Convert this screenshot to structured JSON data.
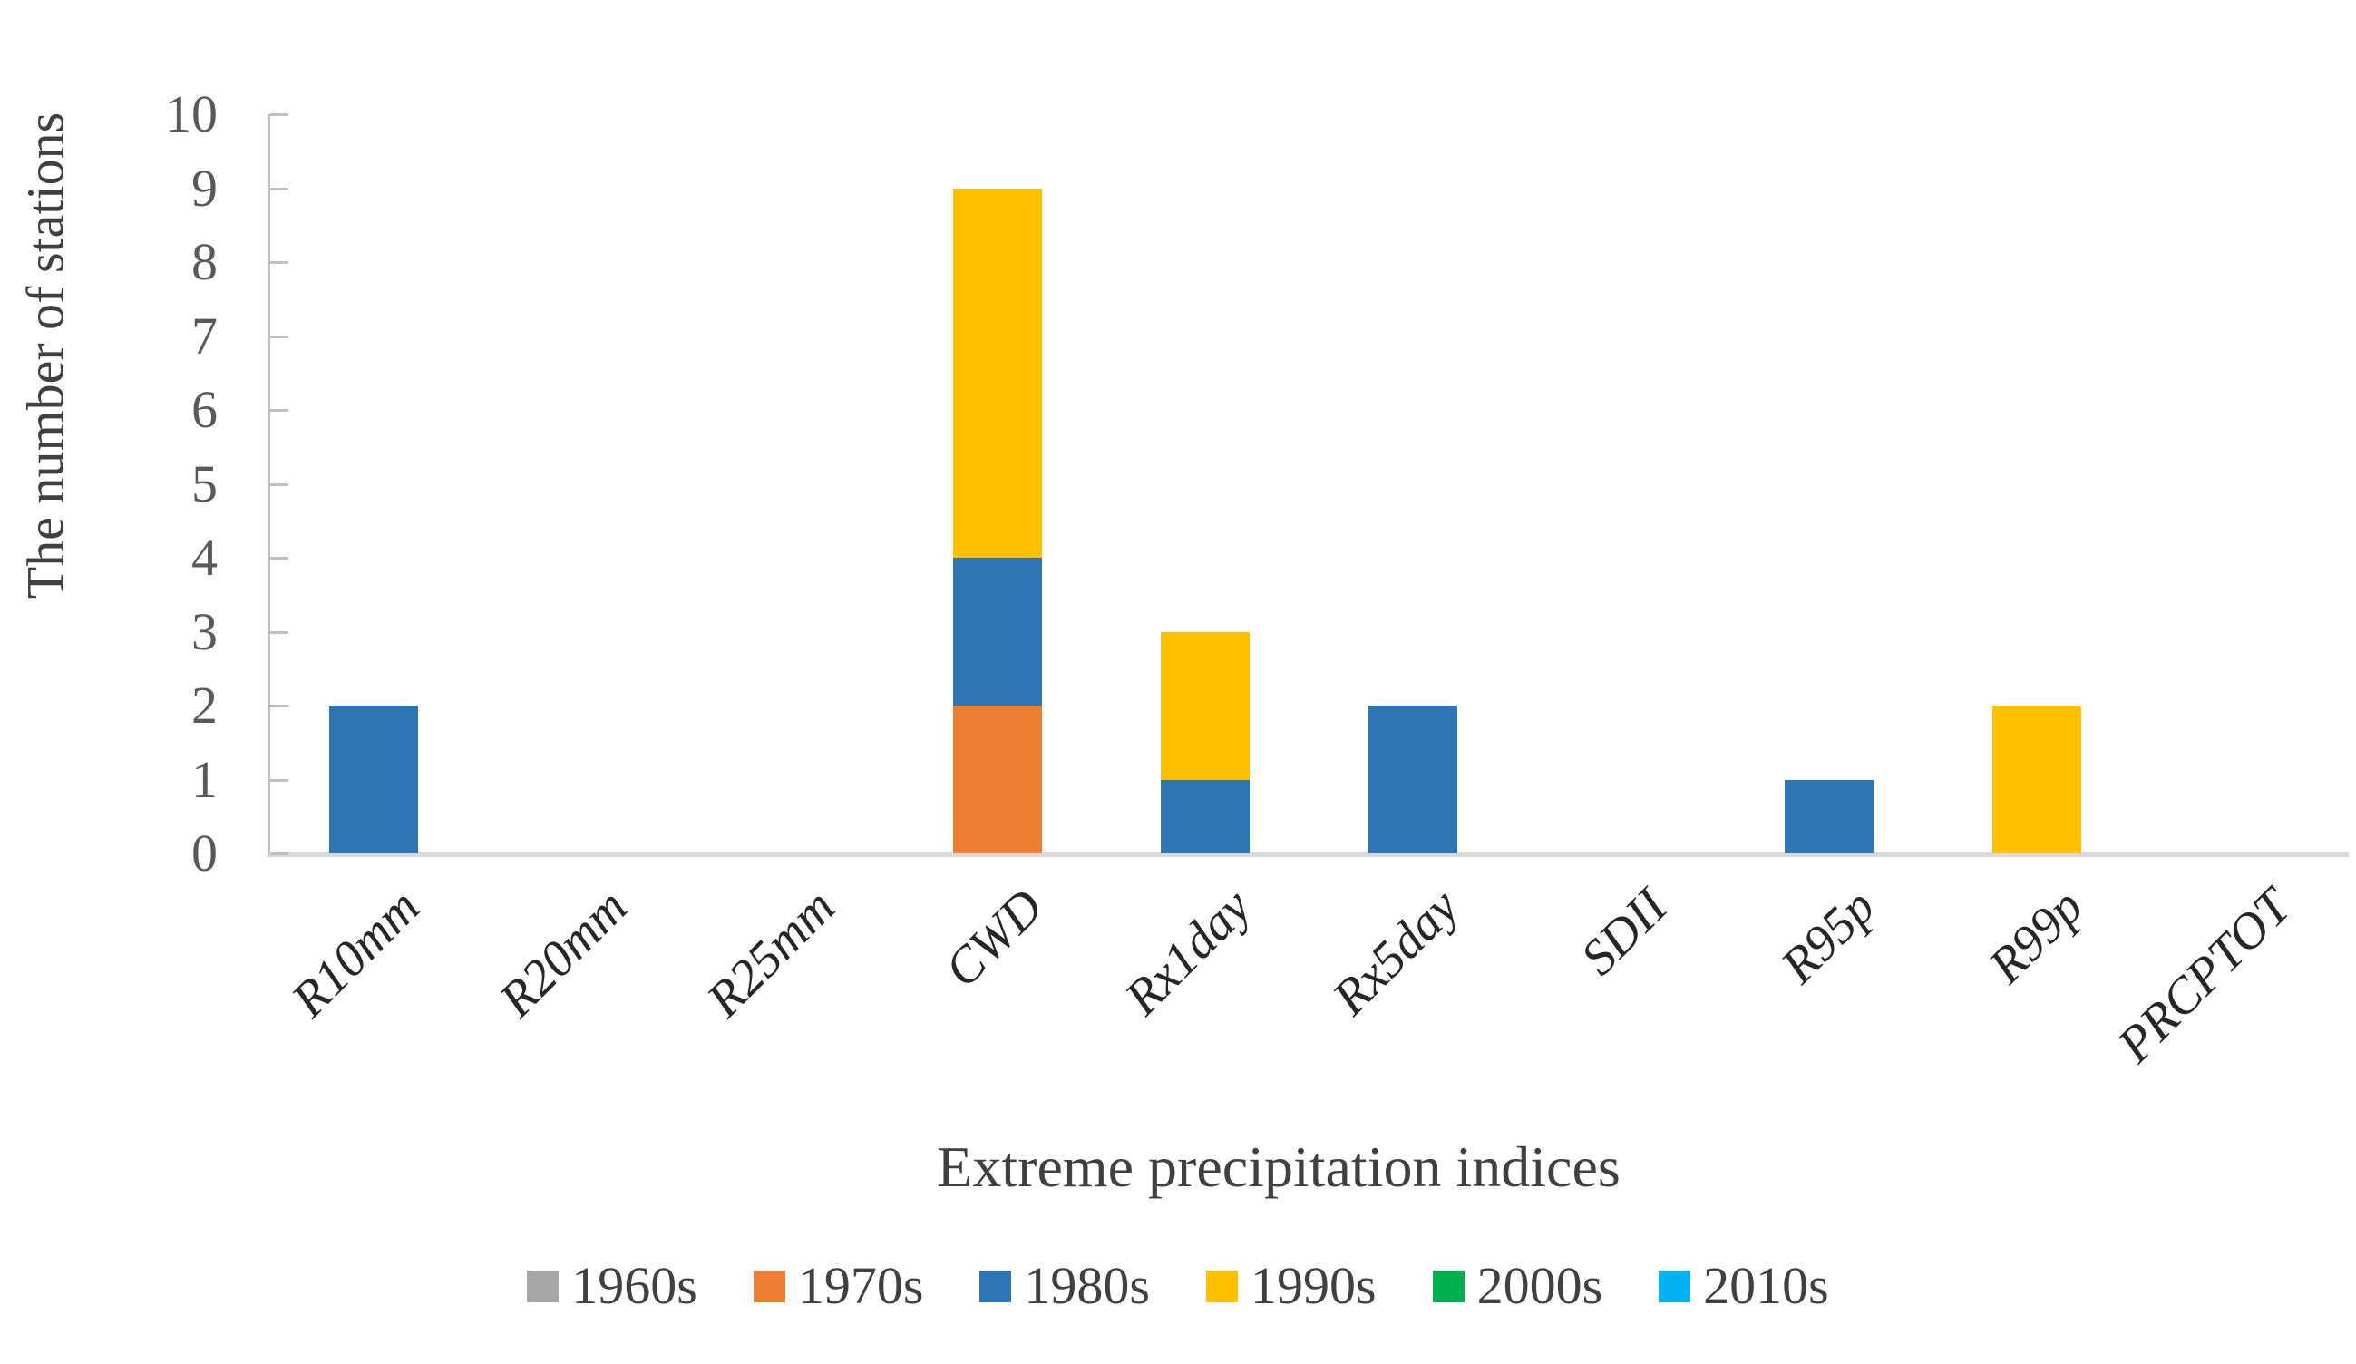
{
  "figure": {
    "ylabel": "The number of stations",
    "xlabel": "Extreme precipitation indices"
  },
  "chart_data": {
    "type": "bar",
    "stacked": true,
    "title": "",
    "xlabel": "Extreme precipitation indices",
    "ylabel": "The number of stations",
    "categories": [
      "R10mm",
      "R20mm",
      "R25mm",
      "CWD",
      "Rx1day",
      "Rx5day",
      "SDII",
      "R95p",
      "R99p",
      "PRCPTOT"
    ],
    "series": [
      {
        "name": "1960s",
        "color": "#A6A6A6",
        "values": [
          0,
          0,
          0,
          0,
          0,
          0,
          0,
          0,
          0,
          0
        ]
      },
      {
        "name": "1970s",
        "color": "#ED7D31",
        "values": [
          0,
          0,
          0,
          2,
          0,
          0,
          0,
          0,
          0,
          0
        ]
      },
      {
        "name": "1980s",
        "color": "#2E75B6",
        "values": [
          2,
          0,
          0,
          2,
          1,
          2,
          0,
          1,
          0,
          0
        ]
      },
      {
        "name": "1990s",
        "color": "#FFC000",
        "values": [
          0,
          0,
          0,
          5,
          2,
          0,
          0,
          0,
          2,
          0
        ]
      },
      {
        "name": "2000s",
        "color": "#00B050",
        "values": [
          0,
          0,
          0,
          0,
          0,
          0,
          0,
          0,
          0,
          0
        ]
      },
      {
        "name": "2010s",
        "color": "#00B0F0",
        "values": [
          0,
          0,
          0,
          0,
          0,
          0,
          0,
          0,
          0,
          0
        ]
      }
    ],
    "ylim": [
      0,
      10
    ],
    "ytick_step": 1,
    "yticks": [
      "0",
      "1",
      "2",
      "3",
      "4",
      "5",
      "6",
      "7",
      "8",
      "9",
      "10"
    ],
    "grid": false,
    "legend_position": "bottom",
    "axis_colors": {
      "y_axis": "#BFBFBF",
      "x_axis": "#D9D9D9",
      "tick_text": "#595959",
      "label_text": "#262626",
      "title_text": "#404040"
    }
  }
}
